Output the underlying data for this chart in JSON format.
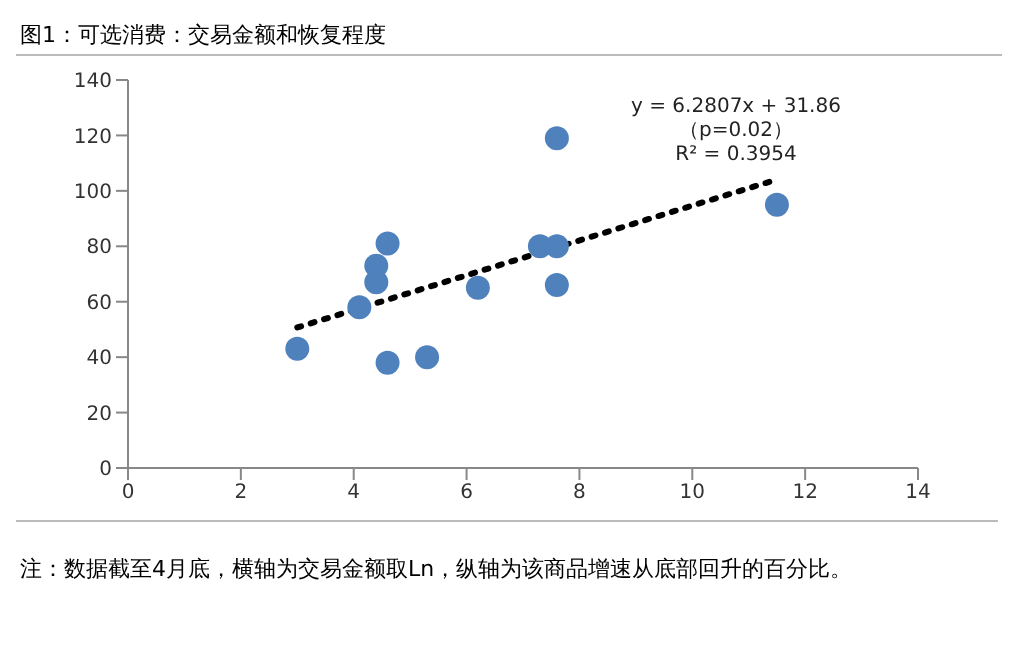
{
  "chart_data": {
    "type": "scatter",
    "title": "图1：可选消费：交易金额和恢复程度",
    "series": [
      {
        "color": "#4f81bd",
        "marker": "circle",
        "x": [
          3,
          4.1,
          4.4,
          4.4,
          4.6,
          4.6,
          5.3,
          6.2,
          7.3,
          7.6,
          7.6,
          7.6,
          11.5
        ],
        "values": [
          43,
          58,
          73,
          67,
          81,
          38,
          40,
          65,
          80,
          80,
          66,
          119,
          95
        ]
      },
      {
        "type": "line",
        "color": "#000000",
        "marker": "none",
        "line_style": "dotted",
        "x": [
          3,
          11.5
        ],
        "values": [
          50.7,
          104.1
        ]
      }
    ],
    "xlim": [
      0,
      14
    ],
    "xticks": [
      0,
      2,
      4,
      6,
      8,
      10,
      12,
      14
    ],
    "ylim": [
      0,
      140
    ],
    "yticks": [
      0,
      20,
      40,
      60,
      80,
      100,
      120,
      140
    ],
    "grid": false,
    "legend": false,
    "annotations": [
      "y = 6.2807x + 31.86",
      "（p=0.02）",
      "R² = 0.3954",
      "注：数据截至4月底，横轴为交易金额取Ln，纵轴为该商品增速从底部回升的百分比。"
    ]
  }
}
